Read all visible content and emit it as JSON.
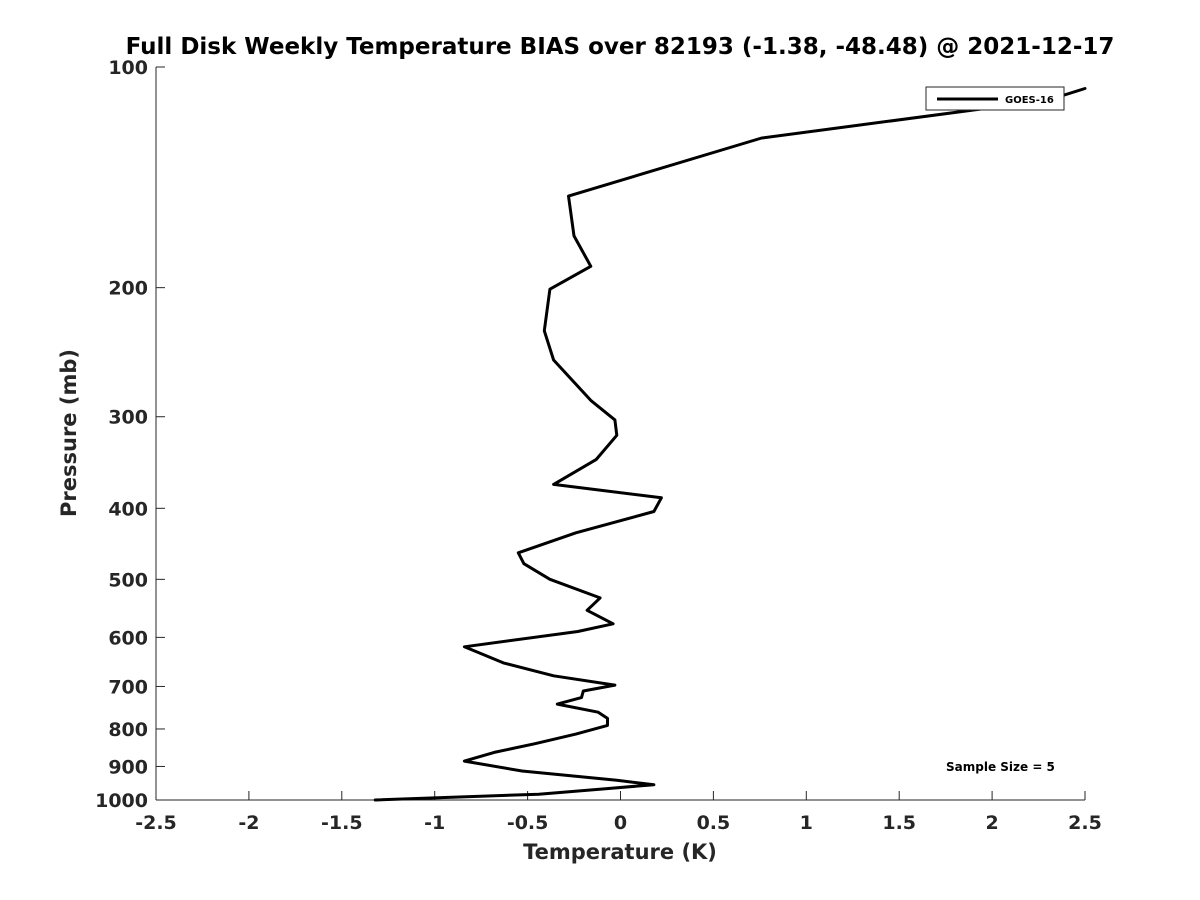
{
  "chart_data": {
    "type": "line",
    "title": "Full Disk Weekly Temperature BIAS over 82193 (-1.38, -48.48) @ 2021-12-17",
    "xlabel": "Temperature (K)",
    "ylabel": "Pressure (mb)",
    "xlim": [
      -2.5,
      2.5
    ],
    "ylim": [
      100,
      1000
    ],
    "y_scale": "log",
    "y_reversed": true,
    "grid": false,
    "legend_position": "top-right",
    "x_ticks": [
      -2.5,
      -2,
      -1.5,
      -1,
      -0.5,
      0,
      0.5,
      1,
      1.5,
      2,
      2.5
    ],
    "x_tick_labels": [
      "-2.5",
      "-2",
      "-1.5",
      "-1",
      "-0.5",
      "0",
      "0.5",
      "1",
      "1.5",
      "2",
      "2.5"
    ],
    "y_ticks": [
      100,
      200,
      300,
      400,
      500,
      600,
      700,
      800,
      900,
      1000
    ],
    "y_tick_labels": [
      "100",
      "200",
      "300",
      "400",
      "500",
      "600",
      "700",
      "800",
      "900",
      "1000"
    ],
    "annotation": "Sample Size = 5",
    "series": [
      {
        "name": "GOES-16",
        "color": "#000000",
        "points": [
          [
            2.5,
            107
          ],
          [
            2.3,
            111
          ],
          [
            0.76,
            125
          ],
          [
            -0.28,
            150
          ],
          [
            -0.25,
            170
          ],
          [
            -0.16,
            187
          ],
          [
            -0.38,
            201
          ],
          [
            -0.41,
            229
          ],
          [
            -0.36,
            251
          ],
          [
            -0.16,
            285
          ],
          [
            -0.03,
            303
          ],
          [
            -0.02,
            318
          ],
          [
            -0.13,
            343
          ],
          [
            -0.36,
            371
          ],
          [
            0.22,
            387
          ],
          [
            0.18,
            404
          ],
          [
            -0.24,
            432
          ],
          [
            -0.55,
            460
          ],
          [
            -0.52,
            476
          ],
          [
            -0.38,
            500
          ],
          [
            -0.11,
            530
          ],
          [
            -0.18,
            551
          ],
          [
            -0.04,
            575
          ],
          [
            -0.23,
            589
          ],
          [
            -0.84,
            618
          ],
          [
            -0.63,
            650
          ],
          [
            -0.36,
            677
          ],
          [
            -0.03,
            697
          ],
          [
            -0.2,
            710
          ],
          [
            -0.21,
            725
          ],
          [
            -0.34,
            740
          ],
          [
            -0.12,
            759
          ],
          [
            -0.07,
            774
          ],
          [
            -0.07,
            791
          ],
          [
            -0.24,
            813
          ],
          [
            -0.46,
            838
          ],
          [
            -0.68,
            861
          ],
          [
            -0.84,
            885
          ],
          [
            -0.53,
            913
          ],
          [
            -0.02,
            940
          ],
          [
            0.18,
            953
          ],
          [
            -0.08,
            965
          ],
          [
            -0.44,
            982
          ],
          [
            -1.32,
            1000
          ]
        ]
      }
    ]
  }
}
